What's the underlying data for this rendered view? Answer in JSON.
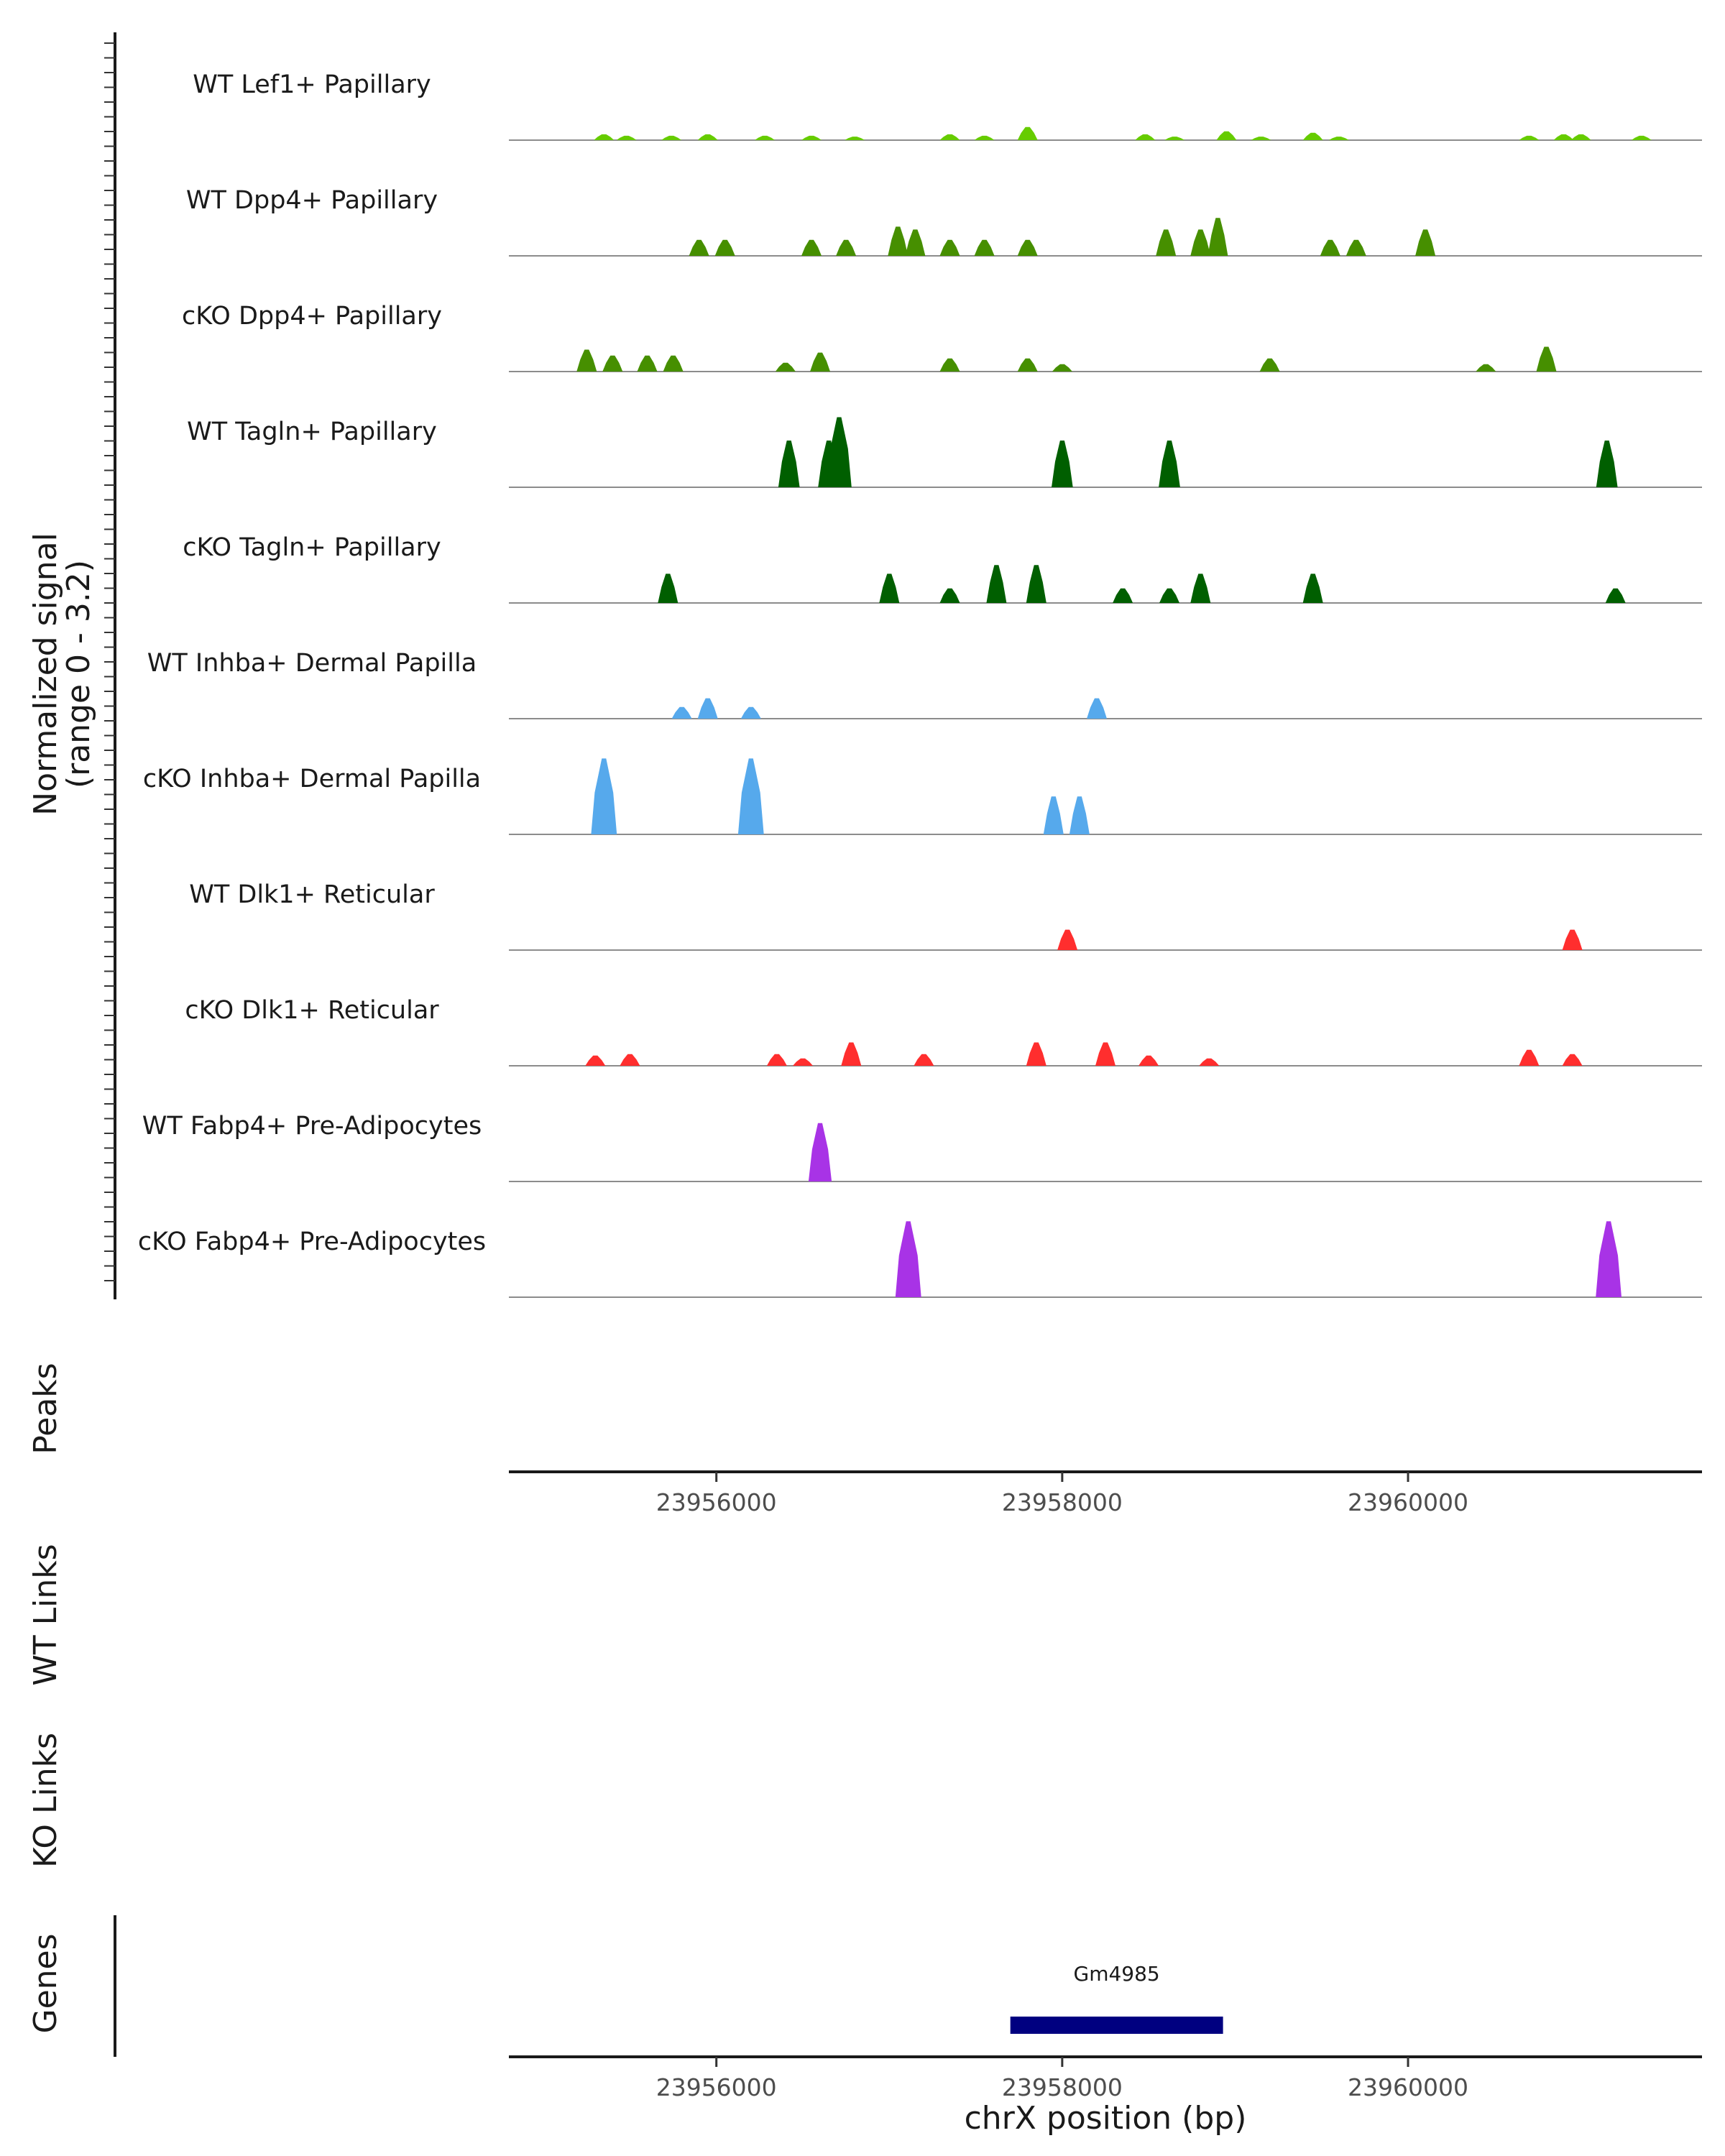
{
  "chart_data": {
    "type": "area",
    "title": "",
    "ylabel": "Normalized signal",
    "ylabel_range": "(range 0 - 3.2)",
    "ylim": [
      0,
      3.2
    ],
    "xlim": [
      23954800,
      23961700
    ],
    "xlabel": "chrX position (bp)",
    "x_ticks": [
      23956000,
      23958000,
      23960000
    ],
    "x_tick_labels": [
      "23956000",
      "23958000",
      "23960000"
    ],
    "tracks": [
      {
        "label": "WT Lef1+ Papillary",
        "color": "#66CC00",
        "peaks": [
          [
            23955350,
            0.2
          ],
          [
            23955480,
            0.15
          ],
          [
            23955740,
            0.15
          ],
          [
            23955950,
            0.2
          ],
          [
            23956280,
            0.15
          ],
          [
            23956550,
            0.15
          ],
          [
            23956800,
            0.12
          ],
          [
            23957350,
            0.2
          ],
          [
            23957550,
            0.15
          ],
          [
            23957800,
            0.45
          ],
          [
            23958480,
            0.2
          ],
          [
            23958650,
            0.12
          ],
          [
            23958950,
            0.3
          ],
          [
            23959150,
            0.12
          ],
          [
            23959450,
            0.25
          ],
          [
            23959600,
            0.12
          ],
          [
            23960700,
            0.15
          ],
          [
            23960900,
            0.2
          ],
          [
            23961000,
            0.2
          ],
          [
            23961350,
            0.15
          ]
        ]
      },
      {
        "label": "WT Dpp4+ Papillary",
        "color": "#468F00",
        "peaks": [
          [
            23955900,
            0.55
          ],
          [
            23956050,
            0.55
          ],
          [
            23956550,
            0.55
          ],
          [
            23956750,
            0.55
          ],
          [
            23957050,
            1.0
          ],
          [
            23957150,
            0.9
          ],
          [
            23957350,
            0.55
          ],
          [
            23957550,
            0.55
          ],
          [
            23957800,
            0.55
          ],
          [
            23958600,
            0.9
          ],
          [
            23958800,
            0.9
          ],
          [
            23958900,
            1.3
          ],
          [
            23959550,
            0.55
          ],
          [
            23959700,
            0.55
          ],
          [
            23960100,
            0.9
          ]
        ]
      },
      {
        "label": "cKO Dpp4+ Papillary",
        "color": "#468F00",
        "peaks": [
          [
            23955250,
            0.75
          ],
          [
            23955400,
            0.55
          ],
          [
            23955600,
            0.55
          ],
          [
            23955750,
            0.55
          ],
          [
            23956400,
            0.3
          ],
          [
            23956600,
            0.65
          ],
          [
            23957350,
            0.45
          ],
          [
            23957800,
            0.45
          ],
          [
            23958000,
            0.25
          ],
          [
            23959200,
            0.45
          ],
          [
            23960450,
            0.25
          ],
          [
            23960800,
            0.85
          ]
        ]
      },
      {
        "label": "WT Tagln+ Papillary",
        "color": "#005F00",
        "peaks": [
          [
            23956420,
            1.6
          ],
          [
            23956650,
            1.6
          ],
          [
            23956710,
            2.4
          ],
          [
            23958000,
            1.6
          ],
          [
            23958620,
            1.6
          ],
          [
            23961150,
            1.6
          ]
        ]
      },
      {
        "label": "cKO Tagln+ Papillary",
        "color": "#005F00",
        "peaks": [
          [
            23955720,
            1.0
          ],
          [
            23957000,
            1.0
          ],
          [
            23957350,
            0.5
          ],
          [
            23957620,
            1.3
          ],
          [
            23957850,
            1.3
          ],
          [
            23958350,
            0.5
          ],
          [
            23958620,
            0.5
          ],
          [
            23958800,
            1.0
          ],
          [
            23959450,
            1.0
          ],
          [
            23961200,
            0.5
          ]
        ]
      },
      {
        "label": "WT Inhba+ Dermal Papilla",
        "color": "#56A9EC",
        "peaks": [
          [
            23955800,
            0.4
          ],
          [
            23955950,
            0.7
          ],
          [
            23956200,
            0.4
          ],
          [
            23958200,
            0.7
          ]
        ]
      },
      {
        "label": "cKO Inhba+ Dermal Papilla",
        "color": "#56A9EC",
        "peaks": [
          [
            23955350,
            2.6
          ],
          [
            23956200,
            2.6
          ],
          [
            23957950,
            1.3
          ],
          [
            23958100,
            1.3
          ]
        ]
      },
      {
        "label": "WT Dlk1+ Reticular",
        "color": "#FF2E2E",
        "peaks": [
          [
            23958030,
            0.7
          ],
          [
            23960950,
            0.7
          ]
        ]
      },
      {
        "label": "cKO Dlk1+ Reticular",
        "color": "#FF2E2E",
        "peaks": [
          [
            23955300,
            0.35
          ],
          [
            23955500,
            0.4
          ],
          [
            23956350,
            0.4
          ],
          [
            23956500,
            0.25
          ],
          [
            23956780,
            0.8
          ],
          [
            23957200,
            0.4
          ],
          [
            23957850,
            0.8
          ],
          [
            23958250,
            0.8
          ],
          [
            23958500,
            0.35
          ],
          [
            23958850,
            0.25
          ],
          [
            23960700,
            0.55
          ],
          [
            23960950,
            0.4
          ]
        ]
      },
      {
        "label": "WT Fabp4+ Pre-Adipocytes",
        "color": "#A833E6",
        "peaks": [
          [
            23956600,
            2.0
          ]
        ]
      },
      {
        "label": "cKO Fabp4+ Pre-Adipocytes",
        "color": "#A833E6",
        "peaks": [
          [
            23957110,
            2.6
          ],
          [
            23961160,
            2.6
          ]
        ]
      }
    ],
    "panels": {
      "peaks": "Peaks",
      "wt_links": "WT Links",
      "ko_links": "KO Links",
      "genes": "Genes"
    },
    "genes": [
      {
        "name": "Gm4985",
        "start": 23957700,
        "end": 23958930,
        "color": "#000080"
      }
    ]
  }
}
